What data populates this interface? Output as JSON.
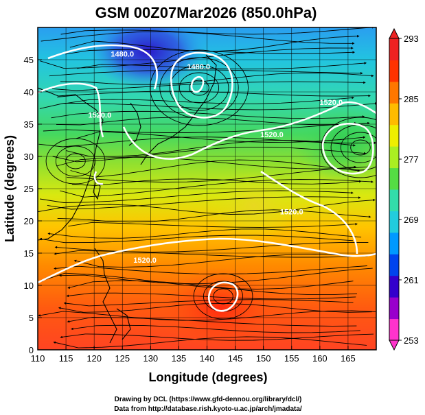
{
  "title": "GSM 00Z07Mar2026 (850.0hPa)",
  "x_axis": {
    "label": "Longitude (degrees)",
    "range": [
      110,
      170
    ],
    "ticks": [
      110,
      115,
      120,
      125,
      130,
      135,
      140,
      145,
      150,
      155,
      160,
      165
    ]
  },
  "y_axis": {
    "label": "Latitude  (degrees)",
    "range": [
      0,
      50
    ],
    "ticks": [
      0,
      5,
      10,
      15,
      20,
      25,
      30,
      35,
      40,
      45
    ]
  },
  "colorbar": {
    "ticks": [
      "293",
      "285",
      "277",
      "269",
      "261",
      "253"
    ],
    "range": [
      253,
      293
    ],
    "colors": [
      "#ff33cc",
      "#9900cc",
      "#3300cc",
      "#0044ee",
      "#0099ff",
      "#22ccdd",
      "#33ddaa",
      "#55dd44",
      "#aaee22",
      "#eeee00",
      "#ffbb00",
      "#ff7700",
      "#ff3300",
      "#ee2222"
    ]
  },
  "contour_labels": [
    {
      "text": "1480.0",
      "lon": 125,
      "lat": 45.5
    },
    {
      "text": "1520.0",
      "lon": 121,
      "lat": 36
    },
    {
      "text": "1480.0",
      "lon": 138.5,
      "lat": 43.5
    },
    {
      "text": "1520.0",
      "lon": 151.5,
      "lat": 33
    },
    {
      "text": "1520.0",
      "lon": 162,
      "lat": 38
    },
    {
      "text": "1520.0",
      "lon": 129,
      "lat": 13.5
    },
    {
      "text": "1520.0",
      "lon": 155,
      "lat": 21
    }
  ],
  "credits": {
    "line1": "Drawing by DCL (https://www.gfd-dennou.org/library/dcl/)",
    "line2": "Data from http://database.rish.kyoto-u.ac.jp/arch/jmadata/"
  }
}
